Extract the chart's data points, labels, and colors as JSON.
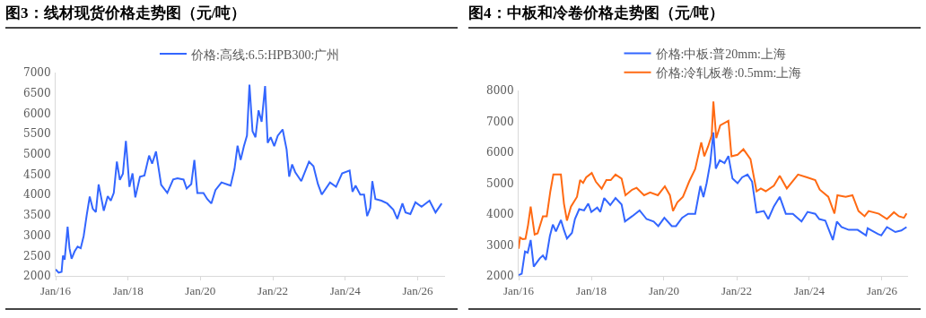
{
  "chart_data": [
    {
      "type": "line",
      "title": "图3：线材现货价格走势图（元/吨）",
      "legend": "top",
      "marker": "none",
      "line_style": "solid",
      "xlim": [
        "2016-01-01",
        "2026-10-05"
      ],
      "ylim": [
        2000,
        7000
      ],
      "xticks": [
        {
          "value": "2016-01-01",
          "label": "Jan/16"
        },
        {
          "value": "2018-01-01",
          "label": "Jan/18"
        },
        {
          "value": "2020-01-01",
          "label": "Jan/20"
        },
        {
          "value": "2022-01-01",
          "label": "Jan/22"
        },
        {
          "value": "2024-01-01",
          "label": "Jan/24"
        },
        {
          "value": "2026-01-01",
          "label": "Jan/26"
        }
      ],
      "yticks": [
        2000,
        2500,
        3000,
        3500,
        4000,
        4500,
        5000,
        5500,
        6000,
        6500,
        7000
      ],
      "series": [
        {
          "name": "价格:高线:6.5:HPB300:广州",
          "color": "#3366ff",
          "x": [
            "2016-01-01",
            "2016-02-01",
            "2016-03-01",
            "2016-03-15",
            "2016-04-01",
            "2016-05-01",
            "2016-05-20",
            "2016-06-10",
            "2016-07-10",
            "2016-08-10",
            "2016-09-10",
            "2016-10-10",
            "2016-11-10",
            "2016-12-10",
            "2017-01-10",
            "2017-02-10",
            "2017-03-10",
            "2017-05-01",
            "2017-06-10",
            "2017-07-10",
            "2017-08-10",
            "2017-09-10",
            "2017-10-10",
            "2017-11-10",
            "2017-12-10",
            "2018-01-15",
            "2018-02-15",
            "2018-03-15",
            "2018-05-01",
            "2018-06-15",
            "2018-08-01",
            "2018-09-01",
            "2018-10-10",
            "2018-12-01",
            "2019-02-01",
            "2019-04-01",
            "2019-05-15",
            "2019-07-15",
            "2019-08-15",
            "2019-10-01",
            "2019-11-01",
            "2019-12-01",
            "2020-02-01",
            "2020-03-10",
            "2020-04-20",
            "2020-06-01",
            "2020-08-01",
            "2020-11-01",
            "2020-12-10",
            "2021-01-10",
            "2021-02-10",
            "2021-03-15",
            "2021-04-15",
            "2021-05-10",
            "2021-06-10",
            "2021-07-10",
            "2021-08-10",
            "2021-09-10",
            "2021-10-15",
            "2021-11-10",
            "2021-12-10",
            "2022-01-15",
            "2022-02-20",
            "2022-04-10",
            "2022-05-20",
            "2022-06-15",
            "2022-07-15",
            "2022-08-15",
            "2022-10-15",
            "2023-01-01",
            "2023-02-15",
            "2023-04-01",
            "2023-05-10",
            "2023-08-01",
            "2023-10-01",
            "2023-12-01",
            "2024-02-15",
            "2024-03-15",
            "2024-04-15",
            "2024-06-01",
            "2024-07-10",
            "2024-08-10",
            "2024-09-10",
            "2024-10-01",
            "2024-11-01",
            "2025-01-01",
            "2025-03-01",
            "2025-05-01",
            "2025-06-10",
            "2025-08-01",
            "2025-09-01",
            "2025-10-20",
            "2025-12-10",
            "2026-02-10",
            "2026-05-01",
            "2026-07-01",
            "2026-09-01"
          ],
          "values": [
            2160,
            2080,
            2100,
            2500,
            2400,
            3210,
            2680,
            2420,
            2600,
            2720,
            2680,
            2980,
            3500,
            3950,
            3650,
            3570,
            4250,
            3600,
            3960,
            3850,
            4040,
            4810,
            4360,
            4510,
            5320,
            4190,
            4520,
            3930,
            4440,
            4470,
            4960,
            4760,
            5060,
            4240,
            4040,
            4370,
            4400,
            4370,
            4150,
            4260,
            4850,
            4040,
            4040,
            3890,
            3780,
            4110,
            4300,
            4220,
            4630,
            5200,
            4850,
            5190,
            5450,
            6700,
            5560,
            5410,
            6070,
            5790,
            6670,
            5270,
            5410,
            5190,
            5450,
            5600,
            5110,
            4440,
            4740,
            4550,
            4330,
            4810,
            4700,
            4260,
            4000,
            4300,
            4190,
            4520,
            4590,
            4070,
            4220,
            4000,
            4000,
            3470,
            3670,
            4330,
            3890,
            3850,
            3780,
            3630,
            3400,
            3780,
            3560,
            3520,
            3810,
            3700,
            3850,
            3560,
            3780
          ]
        }
      ]
    },
    {
      "type": "line",
      "title": "图4：中板和冷卷价格走势图（元/吨）",
      "legend": "top",
      "marker": "none",
      "line_style": "solid",
      "xlim": [
        "2016-01-01",
        "2026-09-20"
      ],
      "ylim": [
        2000,
        8000
      ],
      "xticks": [
        {
          "value": "2016-01-01",
          "label": "Jan/16"
        },
        {
          "value": "2018-01-01",
          "label": "Jan/18"
        },
        {
          "value": "2020-01-01",
          "label": "Jan/20"
        },
        {
          "value": "2022-01-01",
          "label": "Jan/22"
        },
        {
          "value": "2024-01-01",
          "label": "Jan/24"
        },
        {
          "value": "2026-01-01",
          "label": "Jan/26"
        }
      ],
      "yticks": [
        2000,
        3000,
        4000,
        5000,
        6000,
        7000,
        8000
      ],
      "series": [
        {
          "name": "价格:中板:普20mm:上海",
          "color": "#3366ff",
          "x": [
            "2016-01-01",
            "2016-02-01",
            "2016-03-05",
            "2016-04-01",
            "2016-05-01",
            "2016-06-01",
            "2016-08-01",
            "2016-09-01",
            "2016-10-01",
            "2016-11-10",
            "2016-12-10",
            "2017-01-10",
            "2017-03-01",
            "2017-04-01",
            "2017-05-01",
            "2017-06-20",
            "2017-07-20",
            "2017-09-01",
            "2017-10-20",
            "2017-12-01",
            "2018-01-01",
            "2018-03-01",
            "2018-04-01",
            "2018-05-10",
            "2018-07-10",
            "2018-09-01",
            "2018-11-01",
            "2018-12-05",
            "2019-02-15",
            "2019-05-01",
            "2019-07-10",
            "2019-09-20",
            "2019-11-05",
            "2020-01-05",
            "2020-03-20",
            "2020-05-01",
            "2020-07-01",
            "2020-09-01",
            "2020-11-10",
            "2021-01-01",
            "2021-02-01",
            "2021-03-05",
            "2021-04-10",
            "2021-05-12",
            "2021-06-05",
            "2021-07-15",
            "2021-09-01",
            "2021-10-10",
            "2021-11-20",
            "2022-01-10",
            "2022-02-25",
            "2022-04-20",
            "2022-06-05",
            "2022-07-20",
            "2022-10-01",
            "2022-11-15",
            "2023-01-10",
            "2023-03-10",
            "2023-05-10",
            "2023-07-20",
            "2023-10-15",
            "2023-12-15",
            "2024-03-01",
            "2024-04-10",
            "2024-06-10",
            "2024-08-25",
            "2024-10-05",
            "2024-11-20",
            "2025-02-01",
            "2025-05-01",
            "2025-07-25",
            "2025-08-10",
            "2025-11-20",
            "2025-12-25",
            "2026-02-20",
            "2026-05-15",
            "2026-07-15",
            "2026-09-05"
          ],
          "values": [
            2030,
            2070,
            2790,
            2750,
            3160,
            2300,
            2570,
            2660,
            2520,
            3290,
            3660,
            3440,
            3810,
            3480,
            3210,
            3390,
            3840,
            4160,
            4120,
            4340,
            4070,
            4210,
            4070,
            4520,
            4290,
            4520,
            4310,
            3760,
            3930,
            4120,
            3840,
            3760,
            3610,
            3880,
            3610,
            3610,
            3880,
            4010,
            4010,
            4910,
            4550,
            5000,
            5650,
            6640,
            5470,
            5740,
            5650,
            5880,
            5150,
            5000,
            5190,
            5280,
            5050,
            4050,
            4100,
            3840,
            4250,
            4560,
            4010,
            4010,
            3760,
            4070,
            4010,
            3840,
            3790,
            3160,
            3760,
            3580,
            3490,
            3490,
            3310,
            3540,
            3360,
            3310,
            3580,
            3420,
            3470,
            3580
          ]
        },
        {
          "name": "价格:冷轧板卷:0.5mm:上海",
          "color": "#ff6a13",
          "x": [
            "2016-01-01",
            "2016-01-15",
            "2016-02-10",
            "2016-03-10",
            "2016-04-05",
            "2016-05-01",
            "2016-06-10",
            "2016-07-10",
            "2016-09-01",
            "2016-10-10",
            "2016-11-15",
            "2016-12-15",
            "2017-03-01",
            "2017-04-01",
            "2017-05-01",
            "2017-06-10",
            "2017-08-10",
            "2017-09-10",
            "2017-10-10",
            "2017-11-10",
            "2018-01-05",
            "2018-02-15",
            "2018-04-15",
            "2018-06-01",
            "2018-07-15",
            "2018-09-01",
            "2018-11-01",
            "2018-12-10",
            "2019-02-15",
            "2019-04-01",
            "2019-06-15",
            "2019-08-15",
            "2019-11-01",
            "2020-01-10",
            "2020-03-01",
            "2020-04-01",
            "2020-05-15",
            "2020-07-10",
            "2020-09-10",
            "2020-11-10",
            "2021-01-10",
            "2021-02-10",
            "2021-03-20",
            "2021-04-25",
            "2021-05-12",
            "2021-06-10",
            "2021-07-20",
            "2021-10-10",
            "2021-11-10",
            "2022-01-10",
            "2022-03-10",
            "2022-05-20",
            "2022-07-20",
            "2022-09-01",
            "2022-10-20",
            "2023-01-10",
            "2023-03-10",
            "2023-05-20",
            "2023-09-10",
            "2023-12-10",
            "2024-03-01",
            "2024-04-15",
            "2024-07-10",
            "2024-09-10",
            "2024-10-10",
            "2025-01-01",
            "2025-03-10",
            "2025-05-10",
            "2025-07-10",
            "2025-08-20",
            "2025-12-01",
            "2026-02-20",
            "2026-05-01",
            "2026-06-20",
            "2026-08-10",
            "2026-09-05"
          ],
          "values": [
            2880,
            3240,
            3190,
            3200,
            3650,
            4240,
            3340,
            3380,
            3930,
            3930,
            4740,
            5280,
            5280,
            4330,
            3790,
            4240,
            4560,
            5100,
            5010,
            5190,
            5330,
            5050,
            4820,
            5100,
            5100,
            5280,
            5150,
            4610,
            4790,
            4850,
            4610,
            4700,
            4610,
            4900,
            4610,
            4100,
            4380,
            4560,
            5050,
            5460,
            6320,
            5870,
            6190,
            6550,
            7640,
            6460,
            6870,
            7020,
            5870,
            5920,
            6100,
            5780,
            4740,
            4830,
            4740,
            4920,
            5240,
            4830,
            5280,
            5190,
            5100,
            4790,
            4560,
            4020,
            4610,
            4560,
            4610,
            4100,
            3930,
            4100,
            4010,
            3840,
            4060,
            3930,
            3880,
            4020
          ]
        }
      ]
    }
  ]
}
